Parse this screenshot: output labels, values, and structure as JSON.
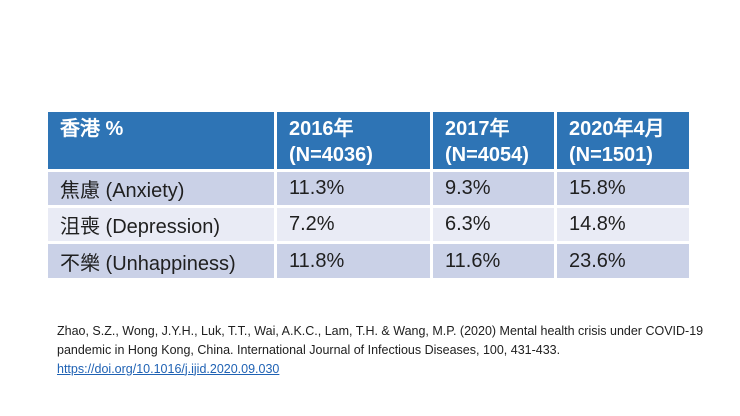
{
  "slide": {
    "table": {
      "header": {
        "col0": "香港 %",
        "col1": "2016年\n(N=4036)",
        "col2": "2017年\n(N=4054)",
        "col3": "2020年4月\n(N=1501)"
      },
      "rows": [
        {
          "label": "焦慮 (Anxiety)",
          "v2016": "11.3%",
          "v2017": "9.3%",
          "v2020": "15.8%"
        },
        {
          "label": "沮喪 (Depression)",
          "v2016": "7.2%",
          "v2017": "6.3%",
          "v2020": "14.8%"
        },
        {
          "label": "不樂 (Unhappiness)",
          "v2016": "11.8%",
          "v2017": "11.6%",
          "v2020": "23.6%"
        }
      ]
    },
    "citation": {
      "text": "Zhao, S.Z., Wong, J.Y.H., Luk, T.T., Wai, A.K.C., Lam, T.H. & Wang, M.P. (2020) Mental health crisis under COVID-19 pandemic in Hong Kong, China. International Journal of Infectious Diseases, 100, 431-433.",
      "link": "https://doi.org/10.1016/j.ijid.2020.09.030"
    },
    "colors": {
      "header_bg": "#2E74B5",
      "header_text": "#FFFFFF",
      "band_dark": "#CAD1E7",
      "band_light": "#E9EBF5",
      "body_text": "#1F1F1F",
      "link": "#1F62B4"
    }
  },
  "chart_data": {
    "type": "table",
    "title": "香港 % mental health prevalence",
    "columns": [
      "香港 %",
      "2016年 (N=4036)",
      "2017年 (N=4054)",
      "2020年4月 (N=1501)"
    ],
    "rows": [
      [
        "焦慮 (Anxiety)",
        "11.3%",
        "9.3%",
        "15.8%"
      ],
      [
        "沮喪 (Depression)",
        "7.2%",
        "6.3%",
        "14.8%"
      ],
      [
        "不樂 (Unhappiness)",
        "11.8%",
        "11.6%",
        "23.6%"
      ]
    ]
  }
}
